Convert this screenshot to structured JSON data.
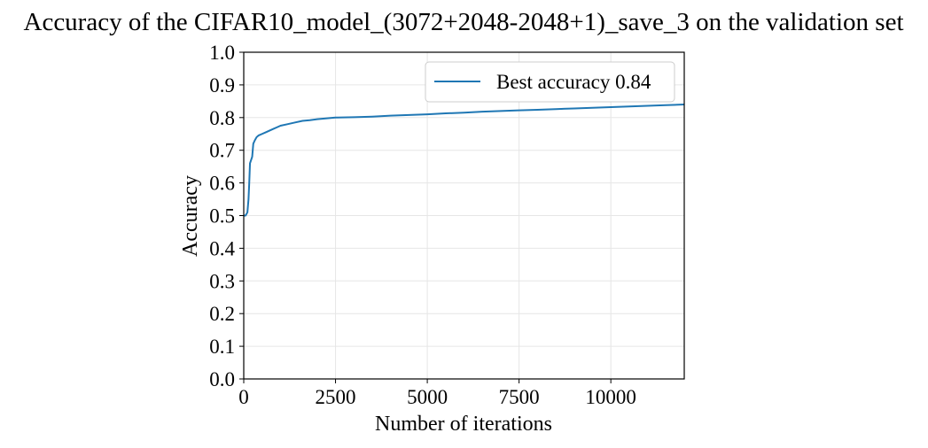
{
  "chart_data": {
    "type": "line",
    "title": "Accuracy of the CIFAR10_model_(3072+2048-2048+1)_save_3 on the validation set",
    "xlabel": "Number of iterations",
    "ylabel": "Accuracy",
    "xlim": [
      0,
      12000
    ],
    "ylim": [
      0.0,
      1.0
    ],
    "x_ticks": [
      0,
      2500,
      5000,
      7500,
      10000
    ],
    "x_tick_labels": [
      "0",
      "2500",
      "5000",
      "7500",
      "10000"
    ],
    "y_ticks": [
      0.0,
      0.1,
      0.2,
      0.3,
      0.4,
      0.5,
      0.6,
      0.7,
      0.8,
      0.9,
      1.0
    ],
    "y_tick_labels": [
      "0.0",
      "0.1",
      "0.2",
      "0.3",
      "0.4",
      "0.5",
      "0.6",
      "0.7",
      "0.8",
      "0.9",
      "1.0"
    ],
    "grid": true,
    "legend_position": "top-right",
    "series": [
      {
        "name": "Best accuracy 0.84",
        "color": "#1f77b4",
        "x": [
          0,
          50,
          100,
          130,
          150,
          170,
          200,
          230,
          260,
          300,
          350,
          400,
          500,
          600,
          700,
          800,
          900,
          1000,
          1200,
          1400,
          1600,
          1800,
          2000,
          2500,
          3000,
          3500,
          4000,
          4500,
          5000,
          5500,
          6000,
          6500,
          7000,
          7500,
          8000,
          8500,
          9000,
          9500,
          10000,
          10500,
          11000,
          11500,
          12000
        ],
        "y": [
          0.5,
          0.5,
          0.51,
          0.55,
          0.6,
          0.66,
          0.67,
          0.68,
          0.72,
          0.73,
          0.74,
          0.745,
          0.75,
          0.755,
          0.76,
          0.765,
          0.77,
          0.775,
          0.78,
          0.785,
          0.79,
          0.792,
          0.795,
          0.8,
          0.801,
          0.803,
          0.806,
          0.808,
          0.81,
          0.813,
          0.815,
          0.818,
          0.82,
          0.822,
          0.824,
          0.826,
          0.828,
          0.83,
          0.832,
          0.834,
          0.836,
          0.838,
          0.84
        ]
      }
    ]
  }
}
